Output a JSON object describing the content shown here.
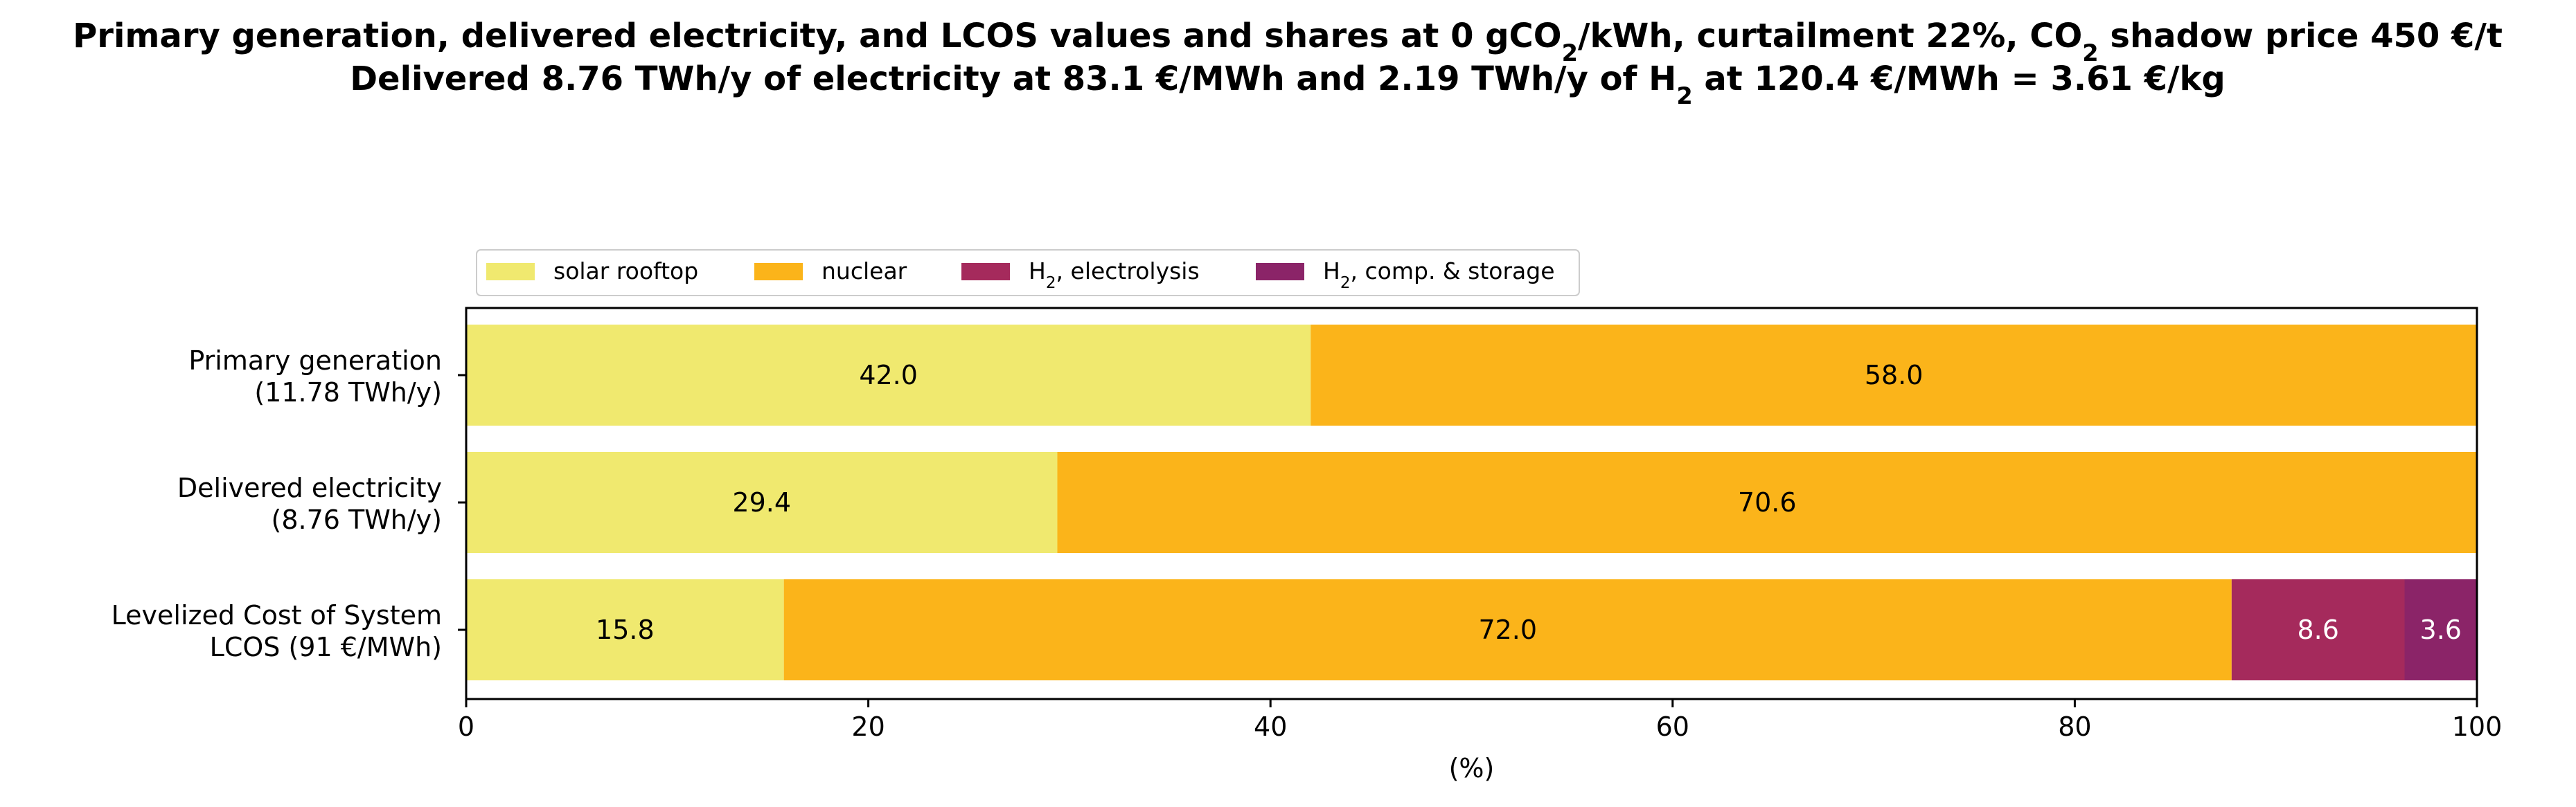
{
  "title": {
    "line1": {
      "before_sub1": "Primary generation, delivered electricity, and LCOS values and shares at 0 gCO",
      "sub1": "2",
      "between": "/kWh, curtailment 22%, CO",
      "sub2": "2",
      "after": " shadow price 450 €/t"
    },
    "line2": {
      "before_sub": "Delivered 8.76 TWh/y of electricity at 83.1 €/MWh and 2.19 TWh/y of H",
      "sub": "2",
      "after": " at 120.4 €/MWh = 3.61 €/kg"
    }
  },
  "chart_data": {
    "type": "bar",
    "orientation": "horizontal",
    "stacked": true,
    "categories": [
      {
        "line1": "Primary generation ",
        "line2": "(11.78 TWh/y)"
      },
      {
        "line1": "Delivered electricity ",
        "line2": "(8.76 TWh/y)"
      },
      {
        "line1": "Levelized Cost of System",
        "line2": "LCOS  (91 €/MWh)"
      }
    ],
    "series": [
      {
        "name_main": "solar rooftop",
        "name_sub": "",
        "name_rest": "",
        "color": "#f0e96f",
        "label_color": "#000000",
        "values": [
          42.0,
          29.4,
          15.8
        ],
        "labels": [
          "42.0",
          "29.4",
          "15.8"
        ]
      },
      {
        "name_main": "nuclear",
        "name_sub": "",
        "name_rest": "",
        "color": "#fbb41a",
        "label_color": "#000000",
        "values": [
          58.0,
          70.6,
          72.0
        ],
        "labels": [
          "58.0",
          "70.6",
          "72.0"
        ]
      },
      {
        "name_main": "H",
        "name_sub": "2",
        "name_rest": ", electrolysis",
        "color": "#a52a5c",
        "label_color": "#ffffff",
        "values": [
          0,
          0,
          8.6
        ],
        "labels": [
          "",
          "",
          "8.6"
        ]
      },
      {
        "name_main": "H",
        "name_sub": "2",
        "name_rest": ", comp. & storage",
        "color": "#8b2468",
        "label_color": "#ffffff",
        "values": [
          0,
          0,
          3.6
        ],
        "labels": [
          "",
          "",
          "3.6"
        ]
      }
    ],
    "xlabel": "(%)",
    "xlim": [
      0,
      100
    ],
    "xticks": [
      0,
      20,
      40,
      60,
      80,
      100
    ],
    "xtick_labels": [
      "0",
      "20",
      "40",
      "60",
      "80",
      "100"
    ],
    "legend_position": "top-left",
    "grid": false
  }
}
